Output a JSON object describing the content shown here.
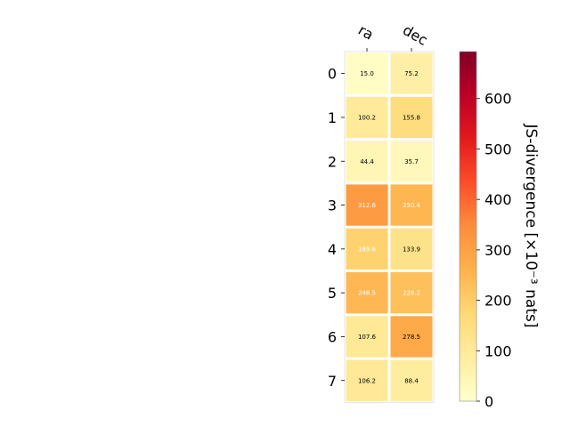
{
  "chart_data": {
    "type": "heatmap",
    "columns": [
      "ra",
      "dec"
    ],
    "rows": [
      "0",
      "1",
      "2",
      "3",
      "4",
      "5",
      "6",
      "7"
    ],
    "values": [
      [
        15.0,
        75.2
      ],
      [
        100.2,
        155.8
      ],
      [
        44.4,
        35.7
      ],
      [
        312.6,
        250.4
      ],
      [
        189.6,
        133.9
      ],
      [
        248.5,
        228.2
      ],
      [
        107.6,
        278.5
      ],
      [
        106.2,
        88.4
      ]
    ],
    "cell_labels": [
      [
        "15.0",
        "75.2"
      ],
      [
        "100.2",
        "155.8"
      ],
      [
        "44.4",
        "35.7"
      ],
      [
        "312.6",
        "250.4"
      ],
      [
        "189.6",
        "133.9"
      ],
      [
        "248.5",
        "228.2"
      ],
      [
        "107.6",
        "278.5"
      ],
      [
        "106.2",
        "88.4"
      ]
    ],
    "colorbar": {
      "label": "JS-divergence [×10⁻³ nats]",
      "ticks": [
        "0",
        "100",
        "200",
        "300",
        "400",
        "500",
        "600"
      ],
      "tick_values": [
        0,
        100,
        200,
        300,
        400,
        500,
        600
      ],
      "range": [
        0,
        693
      ],
      "colormap": "YlOrRd"
    }
  }
}
